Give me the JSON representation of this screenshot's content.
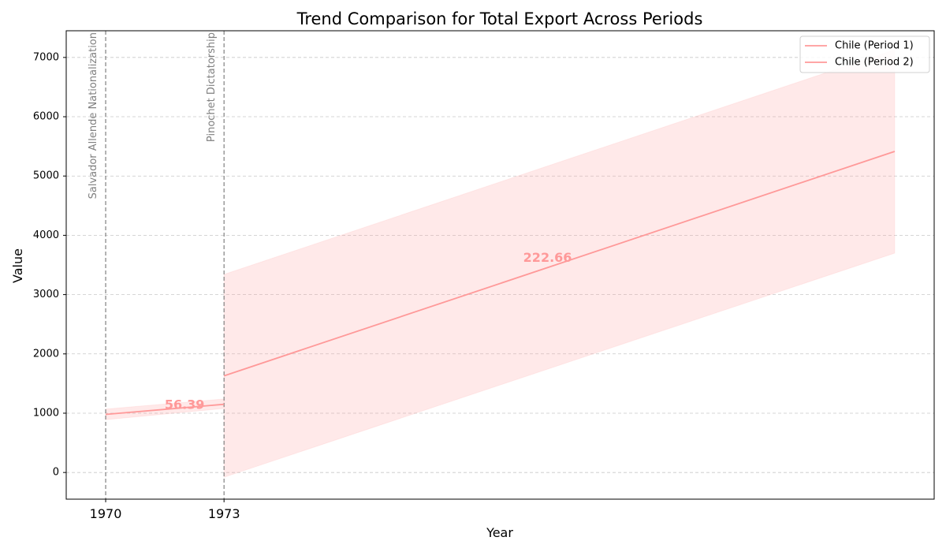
{
  "chart_data": {
    "type": "line",
    "title": "Trend Comparison for Total Export Across Periods",
    "xlabel": "Year",
    "ylabel": "Value",
    "xlim": [
      1969.0,
      1991.0
    ],
    "ylim": [
      -450,
      7450
    ],
    "xticks": [
      1970,
      1973
    ],
    "yticks": [
      0,
      1000,
      2000,
      3000,
      4000,
      5000,
      6000,
      7000
    ],
    "grid": true,
    "legend_position": "top-right",
    "color": "#ff9999",
    "series": [
      {
        "name": "Chile (Period 1)",
        "x": [
          1970,
          1973
        ],
        "y": [
          980,
          1150
        ],
        "lower": [
          890,
          1080
        ],
        "upper": [
          1070,
          1240
        ],
        "slope_label": "56.39",
        "slope_label_pos": [
          1972.0,
          1130
        ]
      },
      {
        "name": "Chile (Period 2)",
        "x": [
          1973,
          1990
        ],
        "y": [
          1630,
          5415
        ],
        "lower": [
          -80,
          3700
        ],
        "upper": [
          3340,
          7130
        ],
        "slope_label": "222.66",
        "slope_label_pos": [
          1981.2,
          3610
        ]
      }
    ],
    "events": [
      {
        "x": 1970,
        "label": "Salvador Allende Nationalization"
      },
      {
        "x": 1973,
        "label": "Pinochet Dictatorship"
      }
    ]
  }
}
